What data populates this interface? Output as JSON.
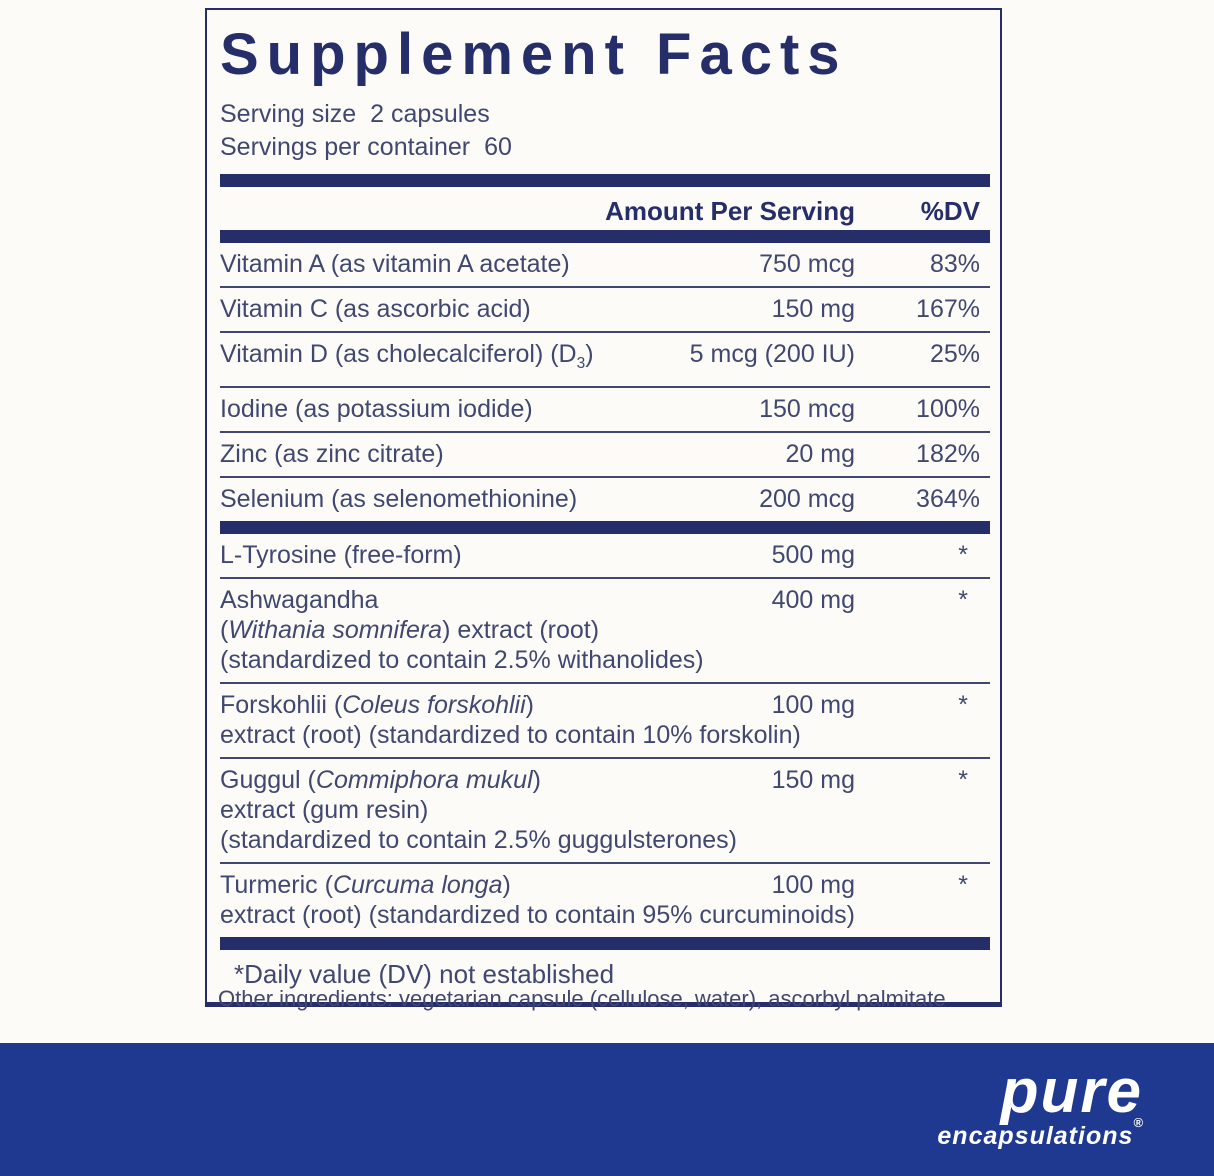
{
  "colors": {
    "navy": "#262e6a",
    "body_text": "#414870",
    "footer_blue": "#1e398f",
    "background": "#fcfbf7"
  },
  "label": {
    "title": "Supplement Facts",
    "serving": {
      "size_label": "Serving size",
      "size_value": "2 capsules",
      "container_label": "Servings per container",
      "container_value": "60"
    },
    "table": {
      "header": {
        "amount": "Amount Per Serving",
        "dv": "%DV"
      },
      "sections": [
        {
          "rows": [
            {
              "lines": [
                [
                  {
                    "t": "Vitamin A (as vitamin A acetate)"
                  }
                ]
              ],
              "amount": "750 mcg",
              "dv": "83%"
            },
            {
              "lines": [
                [
                  {
                    "t": "Vitamin C (as ascorbic acid)"
                  }
                ]
              ],
              "amount": "150 mg",
              "dv": "167%"
            },
            {
              "lines": [
                [
                  {
                    "t": "Vitamin D (as cholecalciferol) (D"
                  },
                  {
                    "t": "3",
                    "style": "sub"
                  },
                  {
                    "t": ")"
                  }
                ]
              ],
              "amount": "5 mcg (200 IU)",
              "dv": "25%"
            },
            {
              "lines": [
                [
                  {
                    "t": "Iodine (as potassium iodide)"
                  }
                ]
              ],
              "amount": "150 mcg",
              "dv": "100%"
            },
            {
              "lines": [
                [
                  {
                    "t": "Zinc (as zinc citrate)"
                  }
                ]
              ],
              "amount": "20 mg",
              "dv": "182%"
            },
            {
              "lines": [
                [
                  {
                    "t": "Selenium (as selenomethionine)"
                  }
                ]
              ],
              "amount": "200 mcg",
              "dv": "364%"
            }
          ]
        },
        {
          "rows": [
            {
              "lines": [
                [
                  {
                    "t": "L-Tyrosine (free-form)"
                  }
                ]
              ],
              "amount": "500 mg",
              "dv": "*"
            },
            {
              "lines": [
                [
                  {
                    "t": "Ashwagandha"
                  }
                ],
                [
                  {
                    "t": "("
                  },
                  {
                    "t": "Withania somnifera",
                    "style": "italic"
                  },
                  {
                    "t": ") extract (root)"
                  }
                ],
                [
                  {
                    "t": "(standardized to contain 2.5% withanolides)"
                  }
                ]
              ],
              "amount": "400 mg",
              "dv": "*"
            },
            {
              "lines": [
                [
                  {
                    "t": "Forskohlii ("
                  },
                  {
                    "t": "Coleus forskohlii",
                    "style": "italic"
                  },
                  {
                    "t": ")"
                  }
                ],
                [
                  {
                    "t": "extract (root) (standardized to contain 10% forskolin)"
                  }
                ]
              ],
              "amount": "100 mg",
              "dv": "*"
            },
            {
              "lines": [
                [
                  {
                    "t": "Guggul ("
                  },
                  {
                    "t": "Commiphora mukul",
                    "style": "italic"
                  },
                  {
                    "t": ")"
                  }
                ],
                [
                  {
                    "t": "extract (gum resin)"
                  }
                ],
                [
                  {
                    "t": "(standardized to contain 2.5% guggulsterones)"
                  }
                ]
              ],
              "amount": "150 mg",
              "dv": "*"
            },
            {
              "lines": [
                [
                  {
                    "t": "Turmeric ("
                  },
                  {
                    "t": "Curcuma longa",
                    "style": "italic"
                  },
                  {
                    "t": ")"
                  }
                ],
                [
                  {
                    "t": "extract (root) (standardized to contain 95% curcuminoids)"
                  }
                ]
              ],
              "amount": "100 mg",
              "dv": "*"
            }
          ]
        }
      ]
    },
    "footnote": "*Daily value (DV) not established"
  },
  "other_ingredients": "Other ingredients: vegetarian capsule (cellulose, water), ascorbyl palmitate",
  "brand": {
    "name": "pure",
    "subname": "encapsulations",
    "registered": "®"
  }
}
